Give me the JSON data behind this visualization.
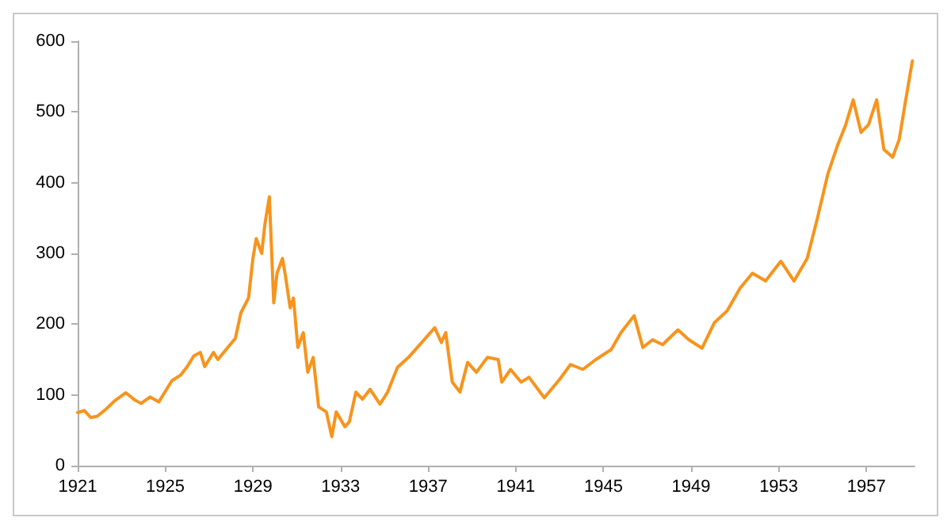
{
  "chart_data": {
    "type": "line",
    "color": "#f7941d",
    "grid": false,
    "marker": "none",
    "line_style": "solid",
    "xlim": [
      1921,
      1959.2
    ],
    "xticks": [
      1921,
      1925,
      1929,
      1933,
      1937,
      1941,
      1945,
      1949,
      1953,
      1957
    ],
    "ylim": [
      0,
      600
    ],
    "yticks": [
      0,
      100,
      200,
      300,
      400,
      500,
      600
    ],
    "x": [
      1921.0,
      1921.3,
      1921.6,
      1921.9,
      1922.3,
      1922.7,
      1923.2,
      1923.6,
      1923.9,
      1924.3,
      1924.7,
      1925.0,
      1925.3,
      1925.7,
      1926.0,
      1926.3,
      1926.6,
      1926.8,
      1927.2,
      1927.4,
      1927.8,
      1928.2,
      1928.45,
      1928.8,
      1929.0,
      1929.15,
      1929.4,
      1929.55,
      1929.75,
      1929.95,
      1930.1,
      1930.35,
      1930.5,
      1930.7,
      1930.85,
      1931.05,
      1931.3,
      1931.5,
      1931.75,
      1932.0,
      1932.35,
      1932.6,
      1932.8,
      1933.2,
      1933.4,
      1933.7,
      1934.0,
      1934.35,
      1934.8,
      1935.15,
      1935.6,
      1936.1,
      1936.7,
      1937.3,
      1937.6,
      1937.8,
      1938.1,
      1938.45,
      1938.8,
      1939.2,
      1939.7,
      1940.2,
      1940.36,
      1940.76,
      1941.24,
      1941.6,
      1942.3,
      1943.0,
      1943.5,
      1944.06,
      1944.65,
      1945.35,
      1945.8,
      1946.4,
      1946.8,
      1947.24,
      1947.7,
      1948.4,
      1948.9,
      1949.5,
      1950.06,
      1950.65,
      1951.24,
      1951.8,
      1952.4,
      1953.1,
      1953.7,
      1954.3,
      1954.76,
      1955.24,
      1955.7,
      1956.06,
      1956.4,
      1956.76,
      1957.1,
      1957.47,
      1957.8,
      1958.2,
      1958.5,
      1958.76,
      1959.1
    ],
    "values": [
      75,
      78,
      68,
      70,
      80,
      92,
      103,
      93,
      88,
      97,
      90,
      105,
      120,
      128,
      140,
      155,
      160,
      140,
      160,
      150,
      165,
      180,
      216,
      237,
      293,
      321,
      300,
      342,
      380,
      230,
      272,
      293,
      265,
      223,
      237,
      167,
      188,
      132,
      153,
      83,
      76,
      41,
      76,
      55,
      62,
      104,
      94,
      108,
      87,
      104,
      139,
      153,
      174,
      195,
      174,
      188,
      118,
      104,
      146,
      132,
      153,
      150,
      118,
      136,
      118,
      125,
      96,
      122,
      143,
      136,
      150,
      164,
      188,
      212,
      167,
      178,
      171,
      192,
      178,
      166,
      202,
      219,
      251,
      272,
      261,
      289,
      261,
      293,
      349,
      412,
      454,
      482,
      517,
      471,
      482,
      517,
      447,
      436,
      461,
      510,
      572
    ]
  }
}
